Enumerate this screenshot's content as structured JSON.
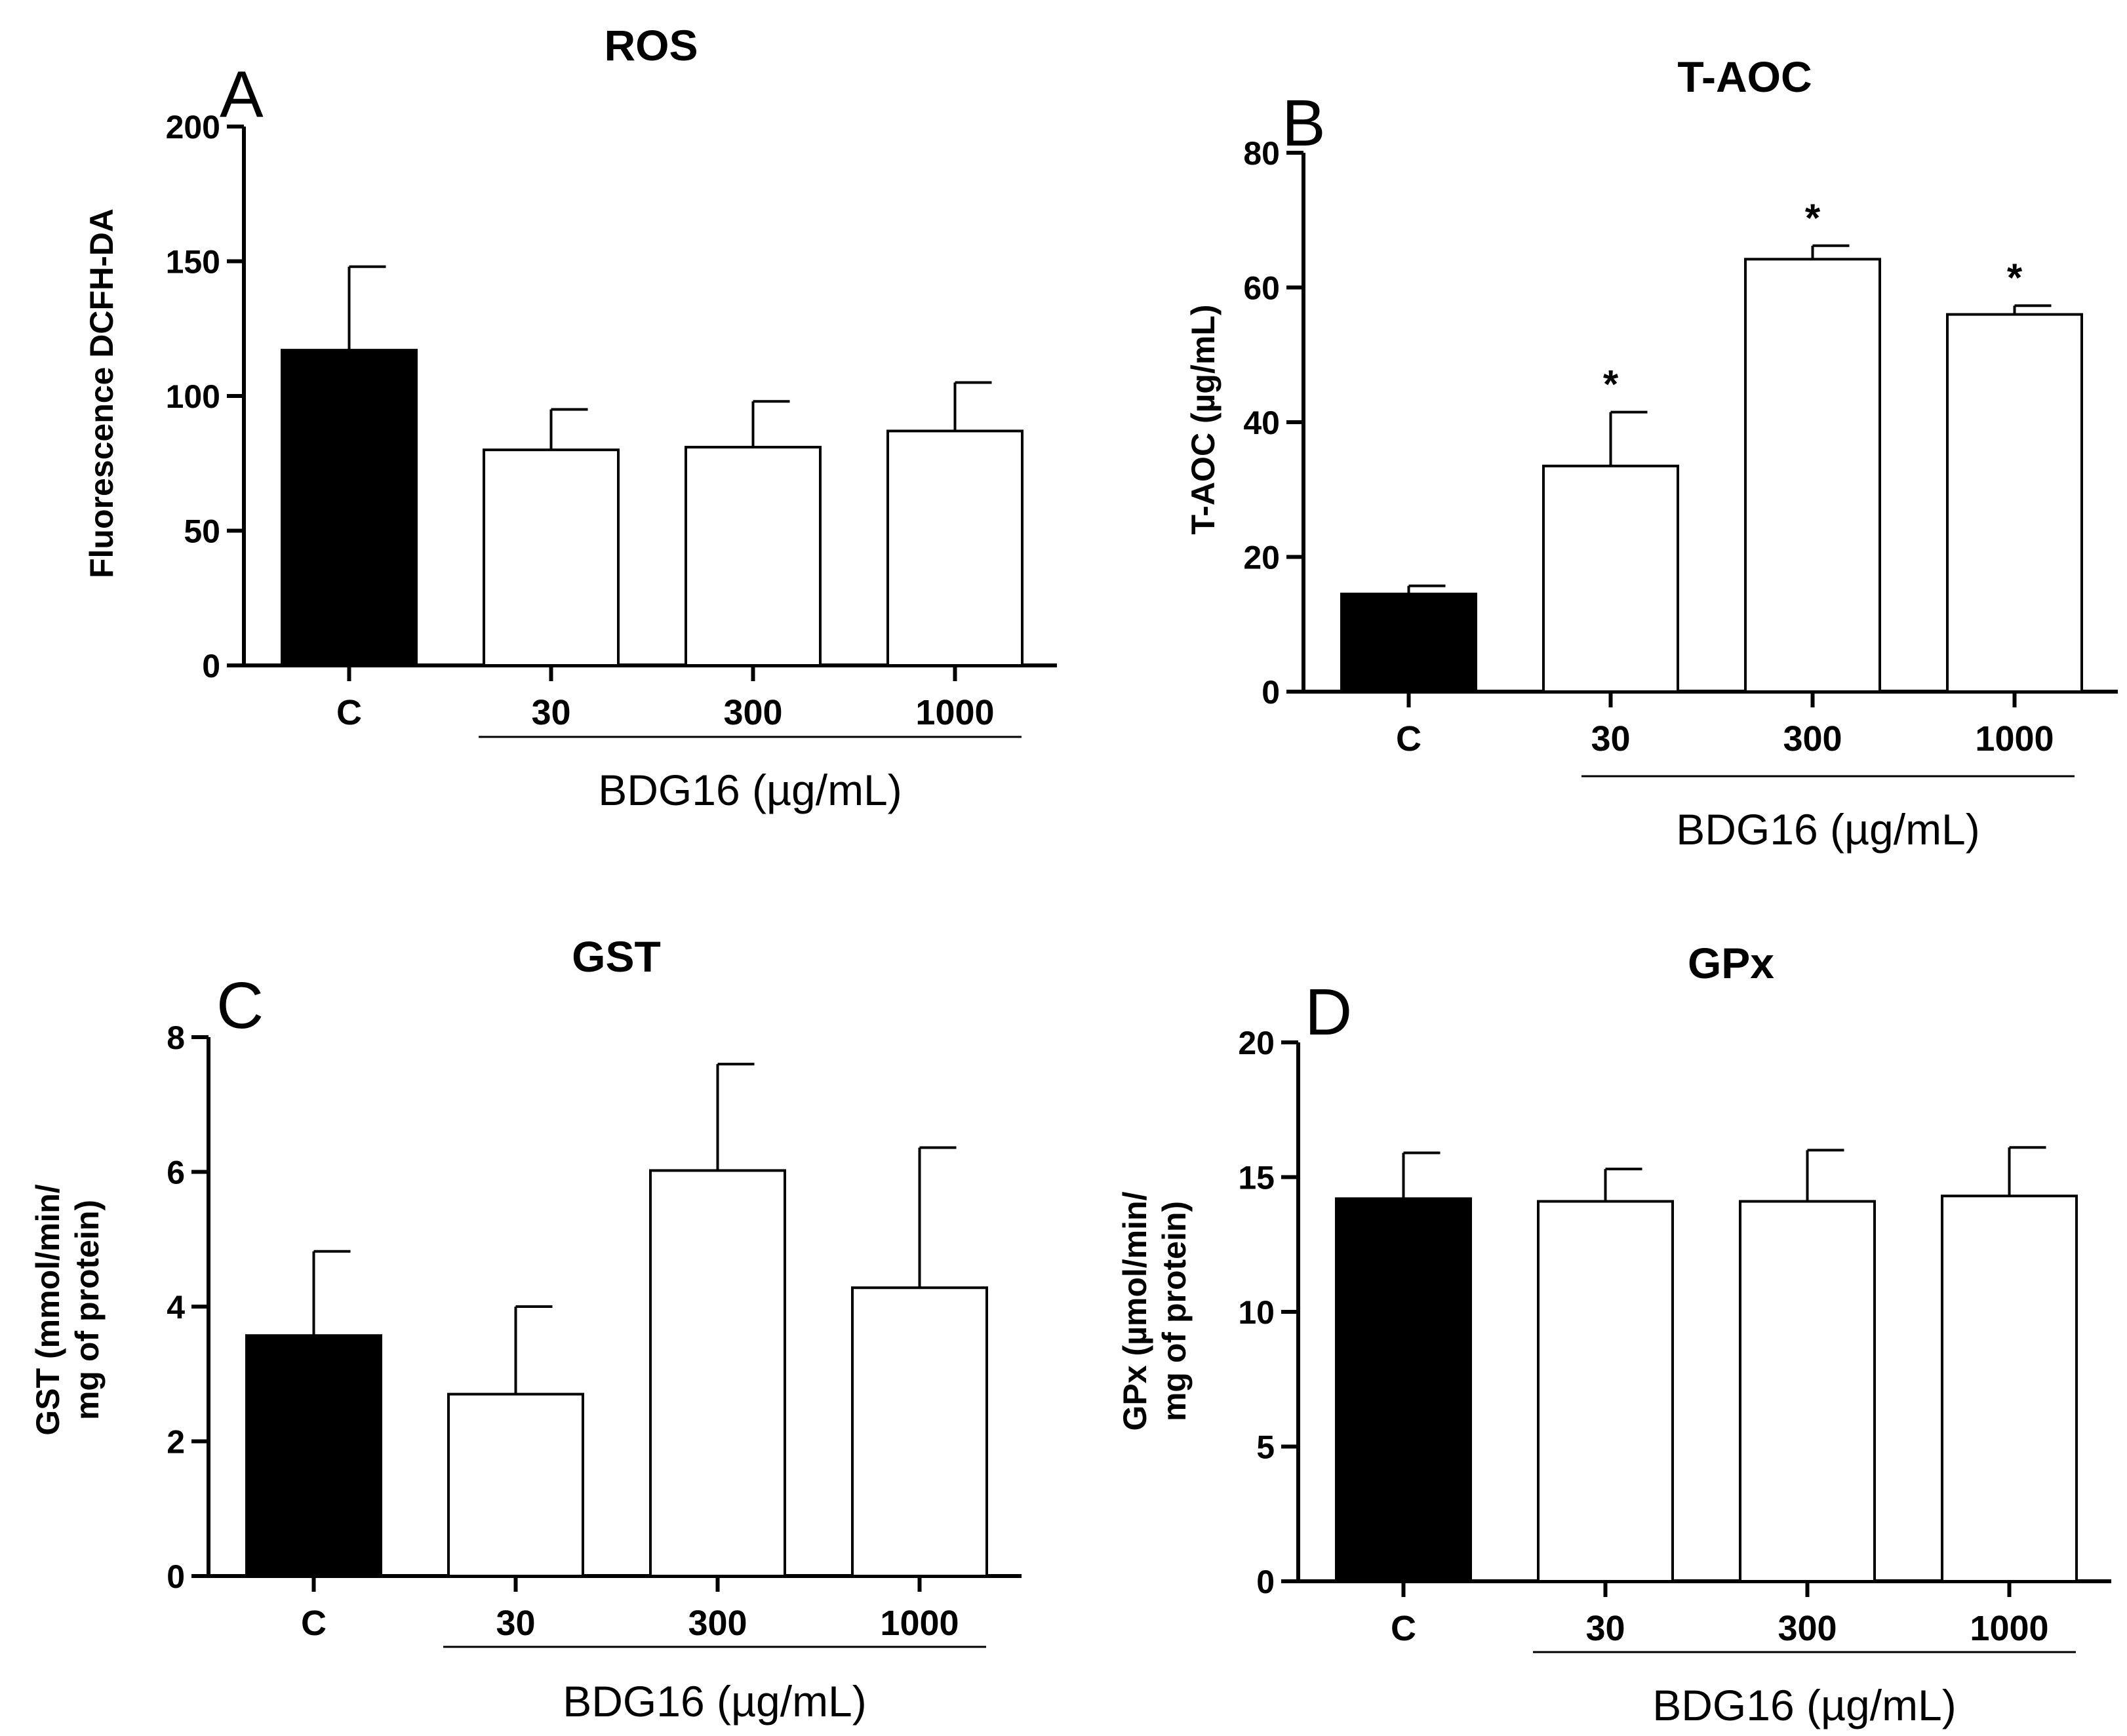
{
  "chart_data": [
    {
      "type": "bar",
      "panel": "A",
      "title": "ROS",
      "ylabel": "Fluorescence DCFH-DA",
      "xlabel": "BDG16 (µg/mL)",
      "categories": [
        "C",
        "30",
        "300",
        "1000"
      ],
      "values": [
        117,
        80,
        81,
        87
      ],
      "errors": [
        31,
        15,
        17,
        18
      ],
      "fills": [
        "#000000",
        "#ffffff",
        "#ffffff",
        "#ffffff"
      ],
      "annotations": [
        "",
        "",
        "",
        ""
      ],
      "ylim": [
        0,
        200
      ],
      "yticks": [
        0,
        50,
        100,
        150,
        200
      ]
    },
    {
      "type": "bar",
      "panel": "B",
      "title": "T-AOC",
      "ylabel": "T-AOC (µg/mL)",
      "xlabel": "BDG16 (µg/mL)",
      "categories": [
        "C",
        "30",
        "300",
        "1000"
      ],
      "values": [
        14.5,
        33.5,
        64.2,
        56
      ],
      "errors": [
        1.2,
        8,
        2,
        1.3
      ],
      "fills": [
        "#000000",
        "#ffffff",
        "#ffffff",
        "#ffffff"
      ],
      "annotations": [
        "",
        "*",
        "*",
        "*"
      ],
      "ylim": [
        0,
        80
      ],
      "yticks": [
        0,
        20,
        40,
        60,
        80
      ]
    },
    {
      "type": "bar",
      "panel": "C",
      "title": "GST",
      "ylabel": [
        "GST (mmol/min/",
        "mg of protein)"
      ],
      "xlabel": "BDG16 (µg/mL)",
      "categories": [
        "C",
        "30",
        "300",
        "1000"
      ],
      "values": [
        3.57,
        2.7,
        6.02,
        4.28
      ],
      "errors": [
        1.25,
        1.3,
        1.58,
        2.08
      ],
      "fills": [
        "#000000",
        "#ffffff",
        "#ffffff",
        "#ffffff"
      ],
      "annotations": [
        "",
        "",
        "",
        ""
      ],
      "ylim": [
        0,
        8
      ],
      "yticks": [
        0,
        2,
        4,
        6,
        8
      ]
    },
    {
      "type": "bar",
      "panel": "D",
      "title": "GPx",
      "ylabel": [
        "GPx (µmol/min/",
        "mg of protein)"
      ],
      "xlabel": "BDG16 (µg/mL)",
      "categories": [
        "C",
        "30",
        "300",
        "1000"
      ],
      "values": [
        14.2,
        14.1,
        14.1,
        14.3
      ],
      "errors": [
        1.7,
        1.2,
        1.9,
        1.8
      ],
      "fills": [
        "#000000",
        "#ffffff",
        "#ffffff",
        "#ffffff"
      ],
      "annotations": [
        "",
        "",
        "",
        ""
      ],
      "ylim": [
        0,
        20
      ],
      "yticks": [
        0,
        5,
        10,
        15,
        20
      ]
    }
  ]
}
